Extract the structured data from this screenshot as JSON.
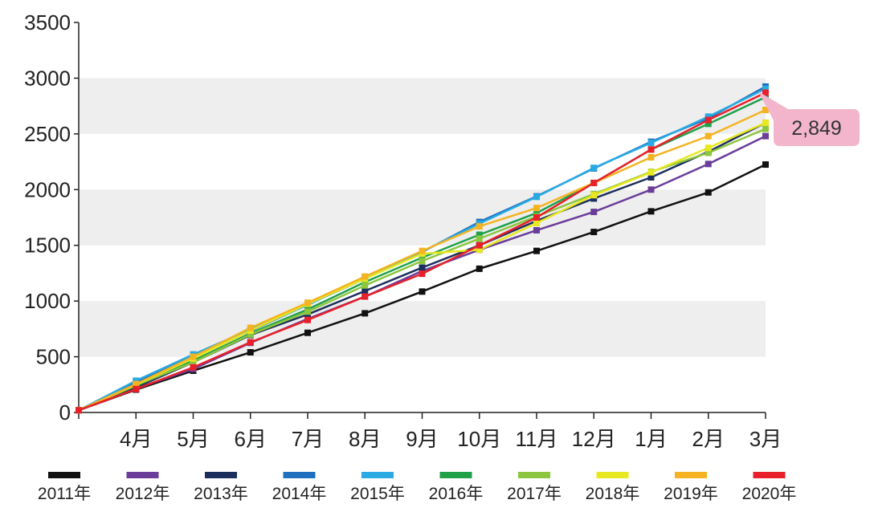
{
  "chart_data": {
    "type": "line",
    "categories": [
      "",
      "4月",
      "5月",
      "6月",
      "7月",
      "8月",
      "9月",
      "10月",
      "11月",
      "12月",
      "1月",
      "2月",
      "3月"
    ],
    "ylim": [
      0,
      3500
    ],
    "yticks": [
      0,
      500,
      1000,
      1500,
      2000,
      2500,
      3000,
      3500
    ],
    "ytick_labels": [
      "0",
      "500",
      "1000",
      "1500",
      "2000",
      "2500",
      "3000",
      "3500"
    ],
    "grid": "alternating horizontal bands",
    "legend_position": "bottom",
    "title": "",
    "xlabel": "",
    "ylabel": "",
    "series": [
      {
        "name": "2011年",
        "color": "#111111",
        "values": [
          20,
          205,
          375,
          540,
          715,
          890,
          1085,
          1290,
          1450,
          1620,
          1805,
          1975,
          2225
        ]
      },
      {
        "name": "2012年",
        "color": "#6a3d9a",
        "values": [
          20,
          215,
          390,
          625,
          840,
          1040,
          1270,
          1460,
          1635,
          1800,
          2000,
          2230,
          2480
        ]
      },
      {
        "name": "2013年",
        "color": "#1c2f5c",
        "values": [
          20,
          225,
          450,
          695,
          880,
          1090,
          1300,
          1500,
          1720,
          1920,
          2110,
          2340,
          2600
        ]
      },
      {
        "name": "2014年",
        "color": "#1f6fbf",
        "values": [
          20,
          270,
          520,
          730,
          970,
          1200,
          1440,
          1710,
          1940,
          2190,
          2430,
          2640,
          2925
        ]
      },
      {
        "name": "2015年",
        "color": "#29aae2",
        "values": [
          20,
          285,
          520,
          745,
          965,
          1215,
          1445,
          1695,
          1935,
          2195,
          2420,
          2655,
          2905
        ]
      },
      {
        "name": "2016年",
        "color": "#1fa14a",
        "values": [
          20,
          240,
          465,
          710,
          925,
          1170,
          1390,
          1595,
          1790,
          2060,
          2360,
          2590,
          2830
        ]
      },
      {
        "name": "2017年",
        "color": "#8cc63f",
        "values": [
          20,
          245,
          450,
          700,
          905,
          1140,
          1360,
          1560,
          1760,
          1960,
          2160,
          2330,
          2545
        ]
      },
      {
        "name": "2018年",
        "color": "#e8e820",
        "values": [
          20,
          250,
          485,
          735,
          975,
          1200,
          1425,
          1460,
          1700,
          1950,
          2155,
          2375,
          2600
        ]
      },
      {
        "name": "2019年",
        "color": "#f5b321",
        "values": [
          20,
          255,
          500,
          760,
          985,
          1220,
          1450,
          1670,
          1835,
          2060,
          2290,
          2480,
          2715
        ]
      },
      {
        "name": "2020年",
        "color": "#e8202a",
        "values": [
          20,
          210,
          405,
          630,
          830,
          1040,
          1245,
          1500,
          1750,
          2060,
          2360,
          2625,
          2870
        ]
      }
    ],
    "annotation": {
      "text": "2,849",
      "background": "#f2b5cc"
    }
  }
}
